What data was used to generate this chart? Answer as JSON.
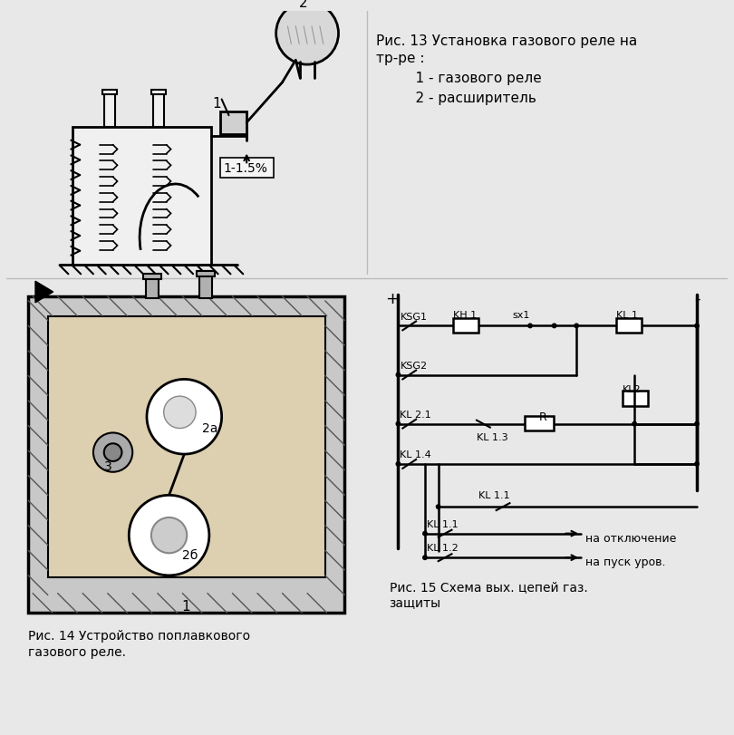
{
  "bg_color": "#e8e8e8",
  "title_color": "#000000",
  "fig13_text": [
    "Рис. 13 Установка газового реле на",
    "тр-ре :",
    "    1 - газового реле",
    "    2 - расширитель"
  ],
  "fig14_caption_line1": "Рис. 14 Устройство поплавкового",
  "fig14_caption_line2": "газового реле.",
  "fig15_caption_line1": "Рис. 15 Схема вых. цепей газ.",
  "fig15_caption_line2": "защиты",
  "slope_text": "1-1.5%",
  "label_2a": "2а",
  "label_2b": "2б",
  "na_otkl": "на отключение",
  "na_pusk": "на пуск уров."
}
